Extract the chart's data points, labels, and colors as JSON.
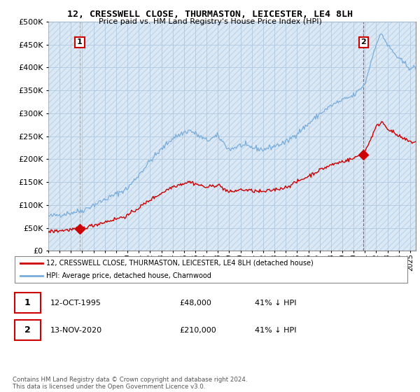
{
  "title": "12, CRESSWELL CLOSE, THURMASTON, LEICESTER, LE4 8LH",
  "subtitle": "Price paid vs. HM Land Registry's House Price Index (HPI)",
  "legend_line1": "12, CRESSWELL CLOSE, THURMASTON, LEICESTER, LE4 8LH (detached house)",
  "legend_line2": "HPI: Average price, detached house, Charnwood",
  "point1_label": "1",
  "point1_date": "12-OCT-1995",
  "point1_price": "£48,000",
  "point1_hpi": "41% ↓ HPI",
  "point1_year": 1995.78,
  "point1_value": 48000,
  "point2_label": "2",
  "point2_date": "13-NOV-2020",
  "point2_price": "£210,000",
  "point2_hpi": "41% ↓ HPI",
  "point2_year": 2020.87,
  "point2_value": 210000,
  "footer1": "Contains HM Land Registry data © Crown copyright and database right 2024.",
  "footer2": "This data is licensed under the Open Government Licence v3.0.",
  "red_color": "#cc0000",
  "blue_color": "#7aadda",
  "hatch_color": "#dce9f5",
  "background_color": "#ffffff",
  "grid_color": "#b0c8e0",
  "ylim": [
    0,
    500000
  ],
  "yticks": [
    0,
    50000,
    100000,
    150000,
    200000,
    250000,
    300000,
    350000,
    400000,
    450000,
    500000
  ],
  "xlim": [
    1993,
    2025.5
  ]
}
